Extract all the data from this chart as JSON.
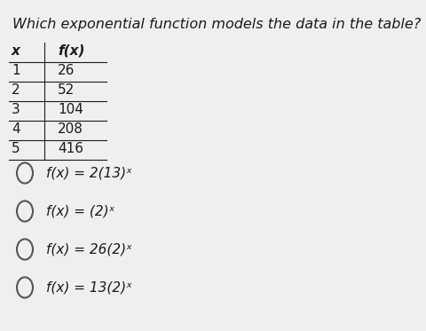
{
  "title": "Which exponential function models the data in the table?",
  "table_headers": [
    "x",
    "f(x)"
  ],
  "table_rows": [
    [
      "1",
      "26"
    ],
    [
      "2",
      "52"
    ],
    [
      "3",
      "104"
    ],
    [
      "4",
      "208"
    ],
    [
      "5",
      "416"
    ]
  ],
  "options": [
    "f(x) = 2(13)ˣ",
    "f(x) = (2)ˣ",
    "f(x) = 26(2)ˣ",
    "f(x) = 13(2)ˣ"
  ],
  "bg_color": "#f0efed",
  "text_color": "#1a1a1a",
  "title_fontsize": 11.5,
  "table_fontsize": 11,
  "option_fontsize": 11
}
